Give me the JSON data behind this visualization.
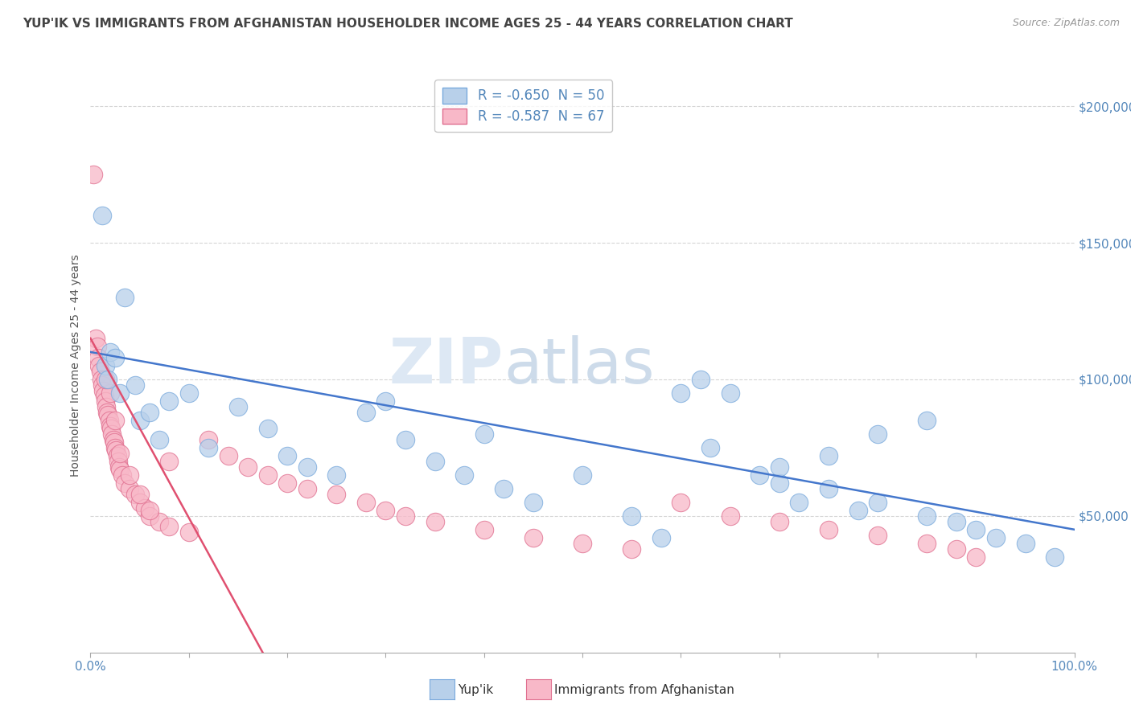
{
  "title": "YUP'IK VS IMMIGRANTS FROM AFGHANISTAN HOUSEHOLDER INCOME AGES 25 - 44 YEARS CORRELATION CHART",
  "source": "Source: ZipAtlas.com",
  "ylabel": "Householder Income Ages 25 - 44 years",
  "watermark_zip": "ZIP",
  "watermark_atlas": "atlas",
  "legend_entries": [
    {
      "label": "R = -0.650  N = 50",
      "color": "#b8d0ea",
      "edge": "#7aaadd"
    },
    {
      "label": "R = -0.587  N = 67",
      "color": "#f8b8c8",
      "edge": "#e07090"
    }
  ],
  "series_yupik": {
    "color": "#b8d0ea",
    "edge_color": "#7aaadd",
    "line_color": "#4477cc",
    "x": [
      1.2,
      3.5,
      1.5,
      2.0,
      1.8,
      2.5,
      3.0,
      4.5,
      5.0,
      6.0,
      8.0,
      10.0,
      15.0,
      12.0,
      18.0,
      7.0,
      20.0,
      22.0,
      25.0,
      28.0,
      30.0,
      32.0,
      35.0,
      38.0,
      40.0,
      42.0,
      45.0,
      50.0,
      55.0,
      58.0,
      60.0,
      62.0,
      65.0,
      68.0,
      70.0,
      72.0,
      75.0,
      78.0,
      80.0,
      85.0,
      88.0,
      90.0,
      92.0,
      95.0,
      98.0,
      63.0,
      70.0,
      75.0,
      80.0,
      85.0
    ],
    "y": [
      160000,
      130000,
      105000,
      110000,
      100000,
      108000,
      95000,
      98000,
      85000,
      88000,
      92000,
      95000,
      90000,
      75000,
      82000,
      78000,
      72000,
      68000,
      65000,
      88000,
      92000,
      78000,
      70000,
      65000,
      80000,
      60000,
      55000,
      65000,
      50000,
      42000,
      95000,
      100000,
      95000,
      65000,
      62000,
      55000,
      60000,
      52000,
      80000,
      50000,
      48000,
      45000,
      42000,
      40000,
      35000,
      75000,
      68000,
      72000,
      55000,
      85000
    ]
  },
  "series_afghanistan": {
    "color": "#f8b8c8",
    "edge_color": "#e07090",
    "line_color": "#e05070",
    "x": [
      0.3,
      0.5,
      0.7,
      0.8,
      0.9,
      1.0,
      1.1,
      1.2,
      1.3,
      1.4,
      1.5,
      1.6,
      1.7,
      1.8,
      1.9,
      2.0,
      2.1,
      2.2,
      2.3,
      2.4,
      2.5,
      2.6,
      2.7,
      2.8,
      2.9,
      3.0,
      3.2,
      3.5,
      4.0,
      4.5,
      5.0,
      5.5,
      6.0,
      7.0,
      8.0,
      10.0,
      12.0,
      14.0,
      16.0,
      18.0,
      20.0,
      22.0,
      25.0,
      28.0,
      30.0,
      32.0,
      35.0,
      40.0,
      45.0,
      50.0,
      55.0,
      60.0,
      65.0,
      70.0,
      75.0,
      80.0,
      85.0,
      88.0,
      90.0,
      2.0,
      1.5,
      2.5,
      3.0,
      4.0,
      5.0,
      6.0,
      8.0
    ],
    "y": [
      175000,
      115000,
      112000,
      108000,
      105000,
      103000,
      100000,
      98000,
      96000,
      94000,
      92000,
      90000,
      88000,
      87000,
      85000,
      83000,
      82000,
      80000,
      78000,
      77000,
      75000,
      74000,
      72000,
      70000,
      68000,
      67000,
      65000,
      62000,
      60000,
      58000,
      55000,
      53000,
      50000,
      48000,
      46000,
      44000,
      78000,
      72000,
      68000,
      65000,
      62000,
      60000,
      58000,
      55000,
      52000,
      50000,
      48000,
      45000,
      42000,
      40000,
      38000,
      55000,
      50000,
      48000,
      45000,
      43000,
      40000,
      38000,
      35000,
      95000,
      100000,
      85000,
      73000,
      65000,
      58000,
      52000,
      70000
    ]
  },
  "xlim": [
    0,
    100
  ],
  "ylim": [
    0,
    210000
  ],
  "yticks": [
    0,
    50000,
    100000,
    150000,
    200000
  ],
  "background_color": "#ffffff",
  "grid_color": "#cccccc",
  "title_color": "#444444",
  "tick_label_color": "#5588bb"
}
